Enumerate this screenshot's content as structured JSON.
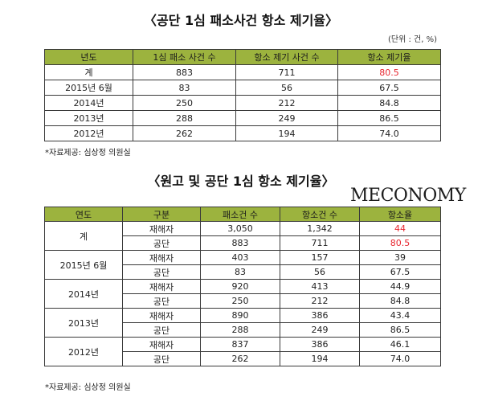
{
  "table1": {
    "title": "〈공단 1심 패소사건 항소 제기율〉",
    "unit": "(단위 : 건, %)",
    "headers": [
      "년도",
      "1심 패소 사건 수",
      "항소 제기 사건 수",
      "항소 제기율"
    ],
    "rows": [
      {
        "year": "계",
        "lost": "883",
        "appealed": "711",
        "rate": "80.5"
      },
      {
        "year": "2015년 6월",
        "lost": "83",
        "appealed": "56",
        "rate": "67.5"
      },
      {
        "year": "2014년",
        "lost": "250",
        "appealed": "212",
        "rate": "84.8"
      },
      {
        "year": "2013년",
        "lost": "288",
        "appealed": "249",
        "rate": "86.5"
      },
      {
        "year": "2012년",
        "lost": "262",
        "appealed": "194",
        "rate": "74.0"
      }
    ],
    "note": "*자료제공: 심상정 의원실"
  },
  "table2": {
    "title": "〈원고 및 공단 1심 항소 제기율〉",
    "headers": [
      "연도",
      "구분",
      "패소건 수",
      "항소건 수",
      "항소율"
    ],
    "groups": [
      {
        "year": "계",
        "rows": [
          {
            "type": "재해자",
            "lost": "3,050",
            "appealed": "1,342",
            "rate": "44"
          },
          {
            "type": "공단",
            "lost": "883",
            "appealed": "711",
            "rate": "80.5"
          }
        ]
      },
      {
        "year": "2015년 6월",
        "rows": [
          {
            "type": "재해자",
            "lost": "403",
            "appealed": "157",
            "rate": "39"
          },
          {
            "type": "공단",
            "lost": "83",
            "appealed": "56",
            "rate": "67.5"
          }
        ]
      },
      {
        "year": "2014년",
        "rows": [
          {
            "type": "재해자",
            "lost": "920",
            "appealed": "413",
            "rate": "44.9"
          },
          {
            "type": "공단",
            "lost": "250",
            "appealed": "212",
            "rate": "84.8"
          }
        ]
      },
      {
        "year": "2013년",
        "rows": [
          {
            "type": "재해자",
            "lost": "890",
            "appealed": "386",
            "rate": "43.4"
          },
          {
            "type": "공단",
            "lost": "288",
            "appealed": "249",
            "rate": "86.5"
          }
        ]
      },
      {
        "year": "2012년",
        "rows": [
          {
            "type": "재해자",
            "lost": "837",
            "appealed": "386",
            "rate": "46.1"
          },
          {
            "type": "공단",
            "lost": "262",
            "appealed": "194",
            "rate": "74.0"
          }
        ]
      }
    ],
    "note": "*자료제공: 심상정 의원실"
  },
  "watermark": "MECONOMY",
  "colors": {
    "header_bg": "#9cb33e",
    "highlight": "#e8262f"
  }
}
